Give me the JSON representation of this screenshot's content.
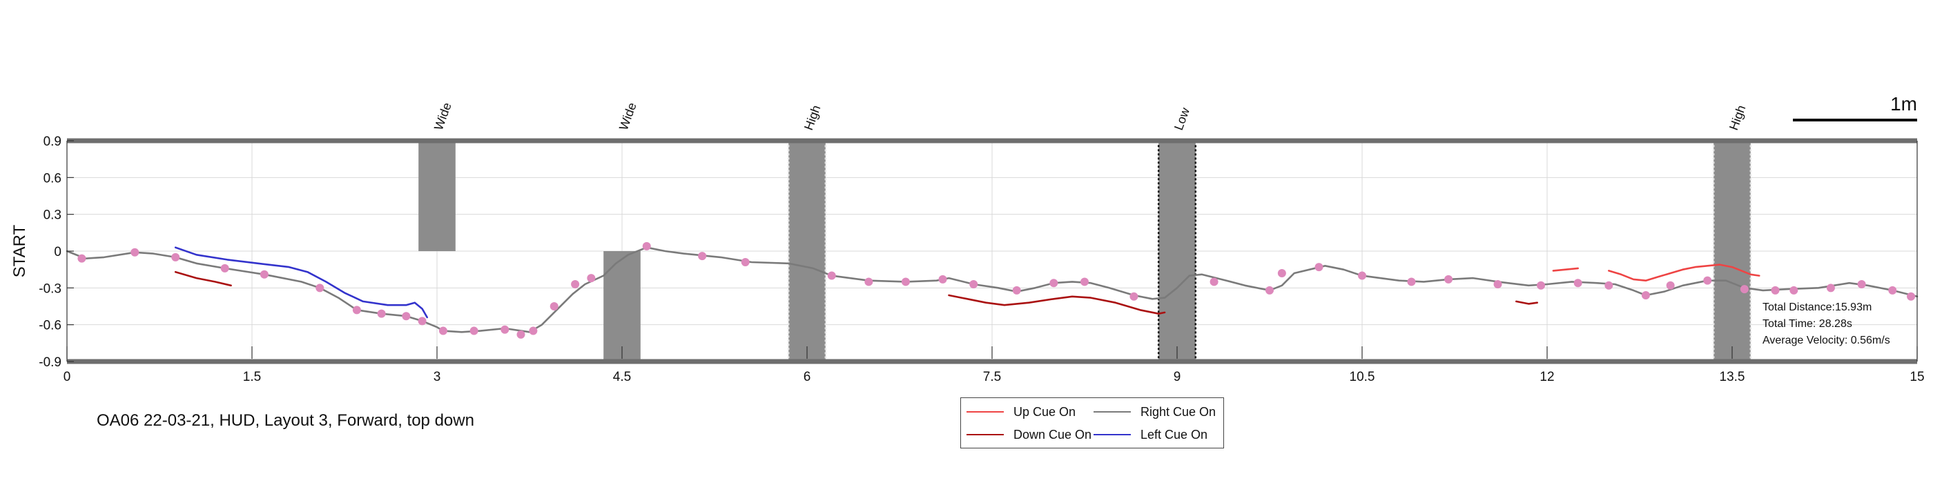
{
  "caption": "OA06 22-03-21, HUD, Layout 3, Forward, top down",
  "chart_data": {
    "type": "line",
    "xlim": [
      0,
      15
    ],
    "ylim": [
      -0.9,
      0.9
    ],
    "ylabel": "START",
    "xticks": [
      "0",
      "1.5",
      "3",
      "4.5",
      "6",
      "7.5",
      "9",
      "10.5",
      "12",
      "13.5",
      "15"
    ],
    "yticks": [
      "0.9",
      "0.6",
      "0.3",
      "0",
      "-0.3",
      "-0.6",
      "-0.9"
    ],
    "grid": true,
    "scale_bar": "1m",
    "obstacles": [
      {
        "label": "Wide",
        "x0": 2.85,
        "x1": 3.15,
        "y0": 0.0,
        "y1": 0.9,
        "dotted": false
      },
      {
        "label": "Wide",
        "x0": 4.35,
        "x1": 4.65,
        "y0": -0.9,
        "y1": 0.0,
        "dotted": false
      },
      {
        "label": "High",
        "x0": 5.85,
        "x1": 6.15,
        "y0": -0.9,
        "y1": 0.9,
        "dotted": true
      },
      {
        "label": "Low",
        "x0": 8.85,
        "x1": 9.15,
        "y0": -0.9,
        "y1": 0.9,
        "dotted": true
      },
      {
        "label": "High",
        "x0": 13.35,
        "x1": 13.65,
        "y0": -0.9,
        "y1": 0.9,
        "dotted": true
      }
    ],
    "series": [
      {
        "name": "Right Cue On",
        "color": "#7a7a7a",
        "segments": [
          [
            [
              0,
              0
            ],
            [
              0.15,
              -0.06
            ],
            [
              0.3,
              -0.05
            ],
            [
              0.55,
              -0.01
            ],
            [
              0.7,
              -0.02
            ],
            [
              0.88,
              -0.05
            ],
            [
              1.05,
              -0.1
            ],
            [
              1.28,
              -0.14
            ],
            [
              1.6,
              -0.19
            ],
            [
              1.9,
              -0.25
            ],
            [
              2.05,
              -0.3
            ],
            [
              2.2,
              -0.38
            ],
            [
              2.35,
              -0.48
            ],
            [
              2.55,
              -0.51
            ],
            [
              2.75,
              -0.53
            ],
            [
              2.88,
              -0.57
            ],
            [
              3.0,
              -0.62
            ],
            [
              3.05,
              -0.65
            ],
            [
              3.2,
              -0.66
            ],
            [
              3.35,
              -0.65
            ],
            [
              3.55,
              -0.63
            ],
            [
              3.75,
              -0.66
            ],
            [
              3.85,
              -0.6
            ],
            [
              3.95,
              -0.5
            ],
            [
              4.1,
              -0.35
            ],
            [
              4.2,
              -0.27
            ],
            [
              4.35,
              -0.2
            ],
            [
              4.45,
              -0.1
            ],
            [
              4.55,
              -0.03
            ],
            [
              4.7,
              0.03
            ],
            [
              4.85,
              0.0
            ],
            [
              5.0,
              -0.02
            ],
            [
              5.3,
              -0.05
            ],
            [
              5.55,
              -0.09
            ],
            [
              5.85,
              -0.1
            ],
            [
              6.05,
              -0.14
            ],
            [
              6.2,
              -0.2
            ],
            [
              6.5,
              -0.24
            ],
            [
              6.8,
              -0.25
            ],
            [
              7.05,
              -0.24
            ],
            [
              7.15,
              -0.22
            ],
            [
              7.35,
              -0.27
            ],
            [
              7.55,
              -0.3
            ],
            [
              7.7,
              -0.33
            ],
            [
              7.85,
              -0.3
            ],
            [
              8.0,
              -0.26
            ],
            [
              8.15,
              -0.25
            ],
            [
              8.3,
              -0.26
            ],
            [
              8.45,
              -0.3
            ],
            [
              8.65,
              -0.36
            ],
            [
              8.8,
              -0.39
            ],
            [
              8.9,
              -0.38
            ],
            [
              9.0,
              -0.3
            ],
            [
              9.1,
              -0.2
            ],
            [
              9.2,
              -0.19
            ],
            [
              9.4,
              -0.24
            ],
            [
              9.55,
              -0.28
            ],
            [
              9.75,
              -0.32
            ],
            [
              9.85,
              -0.28
            ],
            [
              9.95,
              -0.18
            ],
            [
              10.2,
              -0.12
            ],
            [
              10.35,
              -0.15
            ],
            [
              10.5,
              -0.2
            ],
            [
              10.8,
              -0.24
            ],
            [
              11.0,
              -0.25
            ],
            [
              11.2,
              -0.23
            ],
            [
              11.4,
              -0.22
            ],
            [
              11.6,
              -0.25
            ],
            [
              11.85,
              -0.28
            ],
            [
              12.0,
              -0.27
            ],
            [
              12.2,
              -0.25
            ],
            [
              12.4,
              -0.26
            ],
            [
              12.55,
              -0.27
            ],
            [
              12.7,
              -0.32
            ],
            [
              12.8,
              -0.36
            ],
            [
              12.95,
              -0.33
            ],
            [
              13.1,
              -0.28
            ],
            [
              13.3,
              -0.24
            ],
            [
              13.45,
              -0.24
            ],
            [
              13.6,
              -0.3
            ],
            [
              13.75,
              -0.32
            ],
            [
              13.95,
              -0.31
            ],
            [
              14.2,
              -0.3
            ],
            [
              14.45,
              -0.26
            ],
            [
              14.6,
              -0.28
            ],
            [
              14.8,
              -0.32
            ],
            [
              15.0,
              -0.37
            ]
          ]
        ]
      },
      {
        "name": "Left Cue On",
        "color": "#3333cc",
        "segments": [
          [
            [
              0.88,
              0.03
            ],
            [
              1.05,
              -0.03
            ],
            [
              1.3,
              -0.07
            ],
            [
              1.55,
              -0.1
            ],
            [
              1.8,
              -0.13
            ],
            [
              1.95,
              -0.17
            ],
            [
              2.1,
              -0.25
            ],
            [
              2.25,
              -0.34
            ],
            [
              2.4,
              -0.41
            ],
            [
              2.6,
              -0.44
            ],
            [
              2.75,
              -0.44
            ],
            [
              2.82,
              -0.42
            ],
            [
              2.88,
              -0.47
            ],
            [
              2.92,
              -0.54
            ]
          ]
        ]
      },
      {
        "name": "Down Cue On",
        "color": "#aa1111",
        "segments": [
          [
            [
              0.88,
              -0.17
            ],
            [
              1.05,
              -0.22
            ],
            [
              1.2,
              -0.25
            ],
            [
              1.33,
              -0.28
            ]
          ],
          [
            [
              7.15,
              -0.36
            ],
            [
              7.3,
              -0.39
            ],
            [
              7.45,
              -0.42
            ],
            [
              7.6,
              -0.44
            ],
            [
              7.8,
              -0.42
            ],
            [
              8.0,
              -0.39
            ],
            [
              8.15,
              -0.37
            ],
            [
              8.3,
              -0.38
            ],
            [
              8.5,
              -0.42
            ],
            [
              8.7,
              -0.48
            ],
            [
              8.85,
              -0.51
            ],
            [
              8.9,
              -0.5
            ]
          ],
          [
            [
              11.75,
              -0.41
            ],
            [
              11.85,
              -0.43
            ],
            [
              11.92,
              -0.42
            ]
          ]
        ]
      },
      {
        "name": "Up Cue On",
        "color": "#ee4444",
        "segments": [
          [
            [
              12.05,
              -0.16
            ],
            [
              12.15,
              -0.15
            ],
            [
              12.25,
              -0.14
            ]
          ],
          [
            [
              12.5,
              -0.16
            ],
            [
              12.6,
              -0.19
            ],
            [
              12.7,
              -0.23
            ],
            [
              12.8,
              -0.24
            ],
            [
              12.9,
              -0.21
            ],
            [
              13.0,
              -0.18
            ],
            [
              13.1,
              -0.15
            ],
            [
              13.2,
              -0.13
            ],
            [
              13.3,
              -0.12
            ],
            [
              13.4,
              -0.11
            ],
            [
              13.5,
              -0.13
            ],
            [
              13.6,
              -0.17
            ],
            [
              13.65,
              -0.19
            ],
            [
              13.72,
              -0.2
            ]
          ]
        ]
      }
    ],
    "markers": [
      [
        0.12,
        -0.06
      ],
      [
        0.55,
        -0.01
      ],
      [
        0.88,
        -0.05
      ],
      [
        1.28,
        -0.14
      ],
      [
        1.6,
        -0.19
      ],
      [
        2.05,
        -0.3
      ],
      [
        2.35,
        -0.48
      ],
      [
        2.55,
        -0.51
      ],
      [
        2.75,
        -0.53
      ],
      [
        2.88,
        -0.57
      ],
      [
        3.05,
        -0.65
      ],
      [
        3.3,
        -0.65
      ],
      [
        3.55,
        -0.64
      ],
      [
        3.68,
        -0.68
      ],
      [
        3.78,
        -0.65
      ],
      [
        3.95,
        -0.45
      ],
      [
        4.12,
        -0.27
      ],
      [
        4.25,
        -0.22
      ],
      [
        4.7,
        0.04
      ],
      [
        5.15,
        -0.04
      ],
      [
        5.5,
        -0.09
      ],
      [
        6.2,
        -0.2
      ],
      [
        6.5,
        -0.25
      ],
      [
        6.8,
        -0.25
      ],
      [
        7.1,
        -0.23
      ],
      [
        7.35,
        -0.27
      ],
      [
        7.7,
        -0.32
      ],
      [
        8.0,
        -0.26
      ],
      [
        8.25,
        -0.25
      ],
      [
        8.65,
        -0.37
      ],
      [
        9.3,
        -0.25
      ],
      [
        9.75,
        -0.32
      ],
      [
        9.85,
        -0.18
      ],
      [
        10.15,
        -0.13
      ],
      [
        10.5,
        -0.2
      ],
      [
        10.9,
        -0.25
      ],
      [
        11.2,
        -0.23
      ],
      [
        11.6,
        -0.27
      ],
      [
        11.95,
        -0.28
      ],
      [
        12.25,
        -0.26
      ],
      [
        12.5,
        -0.28
      ],
      [
        12.8,
        -0.36
      ],
      [
        13.0,
        -0.28
      ],
      [
        13.3,
        -0.24
      ],
      [
        13.6,
        -0.31
      ],
      [
        13.85,
        -0.32
      ],
      [
        14.0,
        -0.32
      ],
      [
        14.3,
        -0.3
      ],
      [
        14.55,
        -0.27
      ],
      [
        14.8,
        -0.32
      ],
      [
        14.95,
        -0.37
      ]
    ],
    "marker_color": "#dd88bb",
    "stats": [
      "Total Distance:15.93m",
      "Total Time: 28.28s",
      "Average Velocity: 0.56m/s"
    ],
    "legend": [
      {
        "label": "Up Cue On",
        "color": "#ee4444"
      },
      {
        "label": "Right Cue On",
        "color": "#7a7a7a"
      },
      {
        "label": "Down Cue On",
        "color": "#aa1111"
      },
      {
        "label": "Left Cue On",
        "color": "#3333cc"
      }
    ]
  }
}
